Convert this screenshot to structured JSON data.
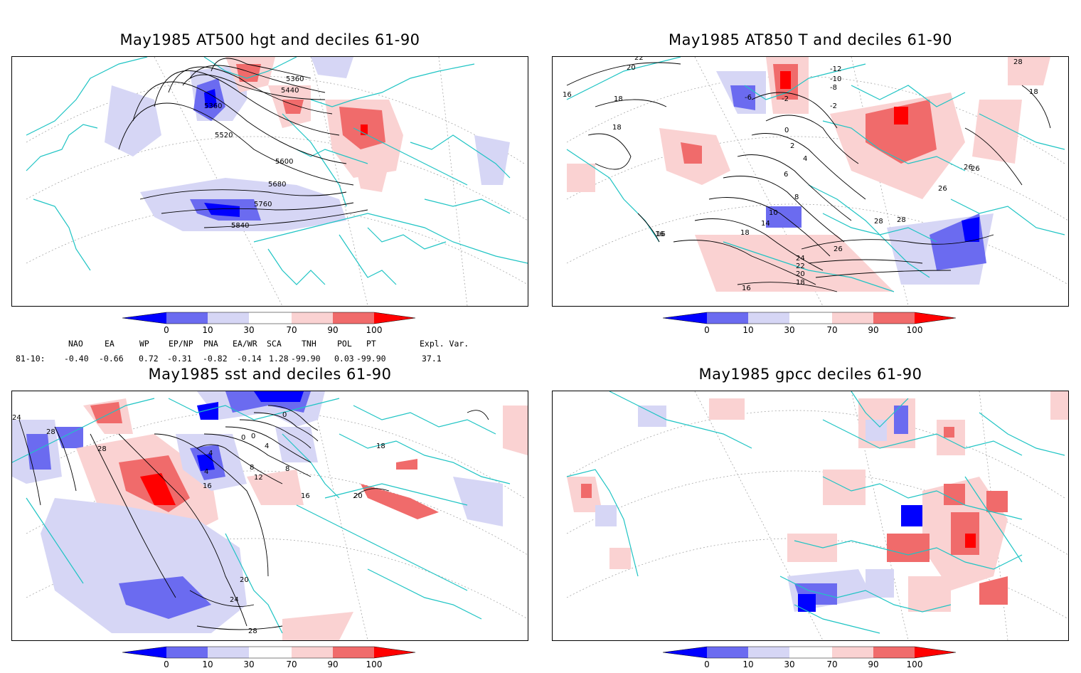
{
  "titles": {
    "p1": "May1985 AT500 hgt and deciles 61-90",
    "p2": "May1985 AT850 T and deciles 61-90",
    "p3": "May1985 sst and deciles 61-90",
    "p4": "May1985 gpcc deciles 61-90"
  },
  "colorbar": {
    "ticks": [
      "0",
      "10",
      "30",
      "70",
      "90",
      "100"
    ],
    "colors": {
      "dark_blue": "#0000ff",
      "mid_blue": "#6b6bf0",
      "light_blue": "#d6d6f5",
      "white": "#ffffff",
      "light_red": "#fad2d2",
      "mid_red": "#f06b6b",
      "dark_red": "#ff0000"
    }
  },
  "indices": {
    "headers": [
      "NAO",
      "EA",
      "WP",
      "EP/NP",
      "PNA",
      "EA/WR",
      "SCA",
      "TNH",
      "POL",
      "PT",
      "Expl. Var."
    ],
    "row_label": "81-10:",
    "values": [
      "-0.40",
      "-0.66",
      "0.72",
      "-0.31",
      "-0.82",
      "-0.14",
      "1.28",
      "-99.90",
      "0.03",
      "-99.90",
      "37.1"
    ]
  },
  "contour_labels": {
    "p1": [
      "5360",
      "5440",
      "5360",
      "5520",
      "5600",
      "5680",
      "5760",
      "5840"
    ],
    "p2": [
      "22",
      "20",
      "16",
      "18",
      "18",
      "16",
      "-6",
      "-2",
      "-12",
      "-10",
      "-8",
      "-2",
      "0",
      "2",
      "4",
      "6",
      "8",
      "10",
      "14",
      "18",
      "16",
      "26",
      "26",
      "28",
      "28",
      "24",
      "22",
      "20",
      "18",
      "16",
      "26",
      "28",
      "18",
      "26"
    ],
    "p3": [
      "24",
      "28",
      "28",
      "0",
      "0",
      "4",
      "4",
      "4",
      "0",
      "8",
      "12",
      "16",
      "16",
      "20",
      "20",
      "24",
      "28",
      "18",
      "8"
    ]
  },
  "map_colors": {
    "coast": "#1fc4c4",
    "contour": "#000000",
    "grid": "#9a9a9a"
  }
}
